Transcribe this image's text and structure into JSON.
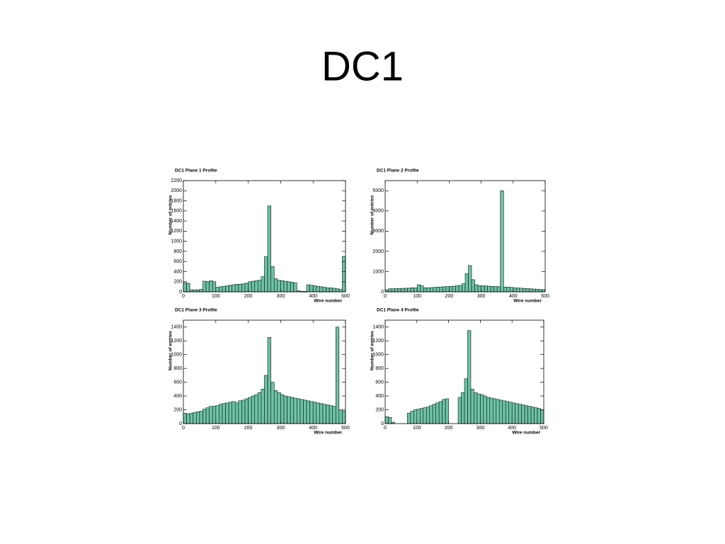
{
  "title": "DC1",
  "chart_data": [
    {
      "type": "histogram",
      "title": "DC1 Plane 1 Profile",
      "xlabel": "Wire number",
      "ylabel": "Number of entries",
      "color": "#6cc4a4",
      "bins": [
        0,
        10,
        20,
        30,
        40,
        50,
        60,
        70,
        80,
        90,
        100,
        110,
        120,
        130,
        140,
        150,
        160,
        170,
        180,
        190,
        200,
        210,
        220,
        230,
        240,
        250,
        260,
        270,
        280,
        290,
        300,
        310,
        320,
        330,
        340,
        350,
        360,
        370,
        380,
        390,
        400,
        410,
        420,
        430,
        440,
        450,
        460,
        470,
        480,
        490,
        500
      ],
      "values": [
        180,
        170,
        40,
        40,
        40,
        50,
        210,
        200,
        220,
        200,
        90,
        100,
        110,
        120,
        130,
        140,
        150,
        150,
        160,
        170,
        200,
        210,
        220,
        230,
        300,
        700,
        1700,
        500,
        260,
        230,
        220,
        210,
        200,
        190,
        180,
        20,
        10,
        10,
        140,
        130,
        120,
        110,
        100,
        90,
        80,
        80,
        70,
        60,
        50,
        700
      ],
      "xlim": [
        0,
        500
      ],
      "xticks": [
        0,
        100,
        200,
        300,
        400,
        500
      ],
      "ylim": [
        0,
        2200
      ],
      "yticks": [
        0,
        200,
        400,
        600,
        800,
        1000,
        1200,
        1400,
        1600,
        1800,
        2000,
        2200
      ]
    },
    {
      "type": "histogram",
      "title": "DC1 Plane 2 Profile",
      "xlabel": "Wire number",
      "ylabel": "Number of entries",
      "color": "#6cc4a4",
      "bins": [
        0,
        10,
        20,
        30,
        40,
        50,
        60,
        70,
        80,
        90,
        100,
        110,
        120,
        130,
        140,
        150,
        160,
        170,
        180,
        190,
        200,
        210,
        220,
        230,
        240,
        250,
        260,
        270,
        280,
        290,
        300,
        310,
        320,
        330,
        340,
        350,
        360,
        370,
        380,
        390,
        400,
        410,
        420,
        430,
        440,
        450,
        460,
        470,
        480,
        490,
        500
      ],
      "values": [
        100,
        150,
        150,
        160,
        170,
        170,
        180,
        180,
        200,
        200,
        350,
        300,
        200,
        200,
        210,
        220,
        230,
        240,
        250,
        260,
        270,
        280,
        300,
        320,
        400,
        900,
        1300,
        600,
        350,
        300,
        300,
        290,
        280,
        270,
        260,
        250,
        5000,
        240,
        230,
        220,
        200,
        190,
        180,
        170,
        160,
        150,
        140,
        130,
        120,
        110
      ],
      "xlim": [
        0,
        500
      ],
      "xticks": [
        0,
        100,
        200,
        300,
        400,
        500
      ],
      "ylim": [
        0,
        5500
      ],
      "yticks": [
        0,
        1000,
        2000,
        3000,
        4000,
        5000
      ]
    },
    {
      "type": "histogram",
      "title": "DC1 Plane 3 Profile",
      "xlabel": "Wire number",
      "ylabel": "Number of entries",
      "color": "#6cc4a4",
      "bins": [
        0,
        10,
        20,
        30,
        40,
        50,
        60,
        70,
        80,
        90,
        100,
        110,
        120,
        130,
        140,
        150,
        160,
        170,
        180,
        190,
        200,
        210,
        220,
        230,
        240,
        250,
        260,
        270,
        280,
        290,
        300,
        310,
        320,
        330,
        340,
        350,
        360,
        370,
        380,
        390,
        400,
        410,
        420,
        430,
        440,
        450,
        460,
        470,
        480,
        490,
        500
      ],
      "values": [
        150,
        140,
        150,
        160,
        170,
        180,
        210,
        230,
        250,
        250,
        260,
        280,
        290,
        300,
        310,
        320,
        300,
        330,
        340,
        360,
        380,
        400,
        420,
        450,
        500,
        700,
        1250,
        600,
        480,
        450,
        420,
        400,
        390,
        380,
        370,
        360,
        350,
        340,
        330,
        320,
        310,
        300,
        290,
        280,
        270,
        260,
        250,
        1400,
        200,
        180
      ],
      "xlim": [
        0,
        500
      ],
      "xticks": [
        0,
        100,
        200,
        300,
        400,
        500
      ],
      "ylim": [
        0,
        1500
      ],
      "yticks": [
        0,
        200,
        400,
        600,
        800,
        1000,
        1200,
        1400
      ]
    },
    {
      "type": "histogram",
      "title": "DC1 Plane 4 Profile",
      "xlabel": "Wire number",
      "ylabel": "Number of entries",
      "color": "#6cc4a4",
      "bins": [
        0,
        10,
        20,
        30,
        40,
        50,
        60,
        70,
        80,
        90,
        100,
        110,
        120,
        130,
        140,
        150,
        160,
        170,
        180,
        190,
        200,
        210,
        220,
        230,
        240,
        250,
        260,
        270,
        280,
        290,
        300,
        310,
        320,
        330,
        340,
        350,
        360,
        370,
        380,
        390,
        400,
        410,
        420,
        430,
        440,
        450,
        460,
        470,
        480,
        490,
        500
      ],
      "values": [
        100,
        90,
        20,
        0,
        0,
        0,
        0,
        150,
        180,
        200,
        210,
        220,
        230,
        240,
        260,
        280,
        300,
        320,
        350,
        360,
        0,
        0,
        0,
        380,
        450,
        650,
        1350,
        500,
        450,
        430,
        420,
        400,
        380,
        370,
        360,
        350,
        340,
        330,
        320,
        310,
        300,
        290,
        280,
        270,
        260,
        250,
        240,
        230,
        220,
        200
      ],
      "xlim": [
        0,
        500
      ],
      "xticks": [
        0,
        100,
        200,
        300,
        400,
        500
      ],
      "ylim": [
        0,
        1500
      ],
      "yticks": [
        0,
        200,
        400,
        600,
        800,
        1000,
        1200,
        1400
      ]
    }
  ]
}
